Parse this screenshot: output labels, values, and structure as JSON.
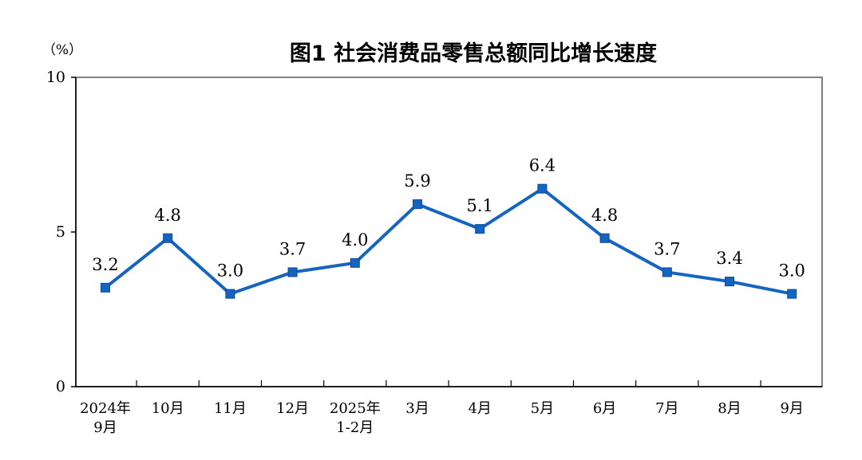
{
  "chart_data": {
    "type": "line",
    "title": "图1  社会消费品零售总额同比增长速度",
    "unit_label": "（%）",
    "xlabel": "",
    "ylabel": "",
    "ylim": [
      0,
      10
    ],
    "yticks": [
      "0",
      "5",
      "10"
    ],
    "ytick_values": [
      0,
      5,
      10
    ],
    "grid": false,
    "legend": "none",
    "categories": [
      [
        "2024年",
        "9月"
      ],
      [
        "10月"
      ],
      [
        "11月"
      ],
      [
        "12月"
      ],
      [
        "2025年",
        "1-2月"
      ],
      [
        "3月"
      ],
      [
        "4月"
      ],
      [
        "5月"
      ],
      [
        "6月"
      ],
      [
        "7月"
      ],
      [
        "8月"
      ],
      [
        "9月"
      ]
    ],
    "series": [
      {
        "values": [
          3.2,
          4.8,
          3.0,
          3.7,
          4.0,
          5.9,
          5.1,
          6.4,
          4.8,
          3.7,
          3.4,
          3.0
        ],
        "labels": [
          "3.2",
          "4.8",
          "3.0",
          "3.7",
          "4.0",
          "5.9",
          "5.1",
          "6.4",
          "4.8",
          "3.7",
          "3.4",
          "3.0"
        ],
        "color": "#1565c0"
      }
    ],
    "frame_color": "#808080"
  }
}
